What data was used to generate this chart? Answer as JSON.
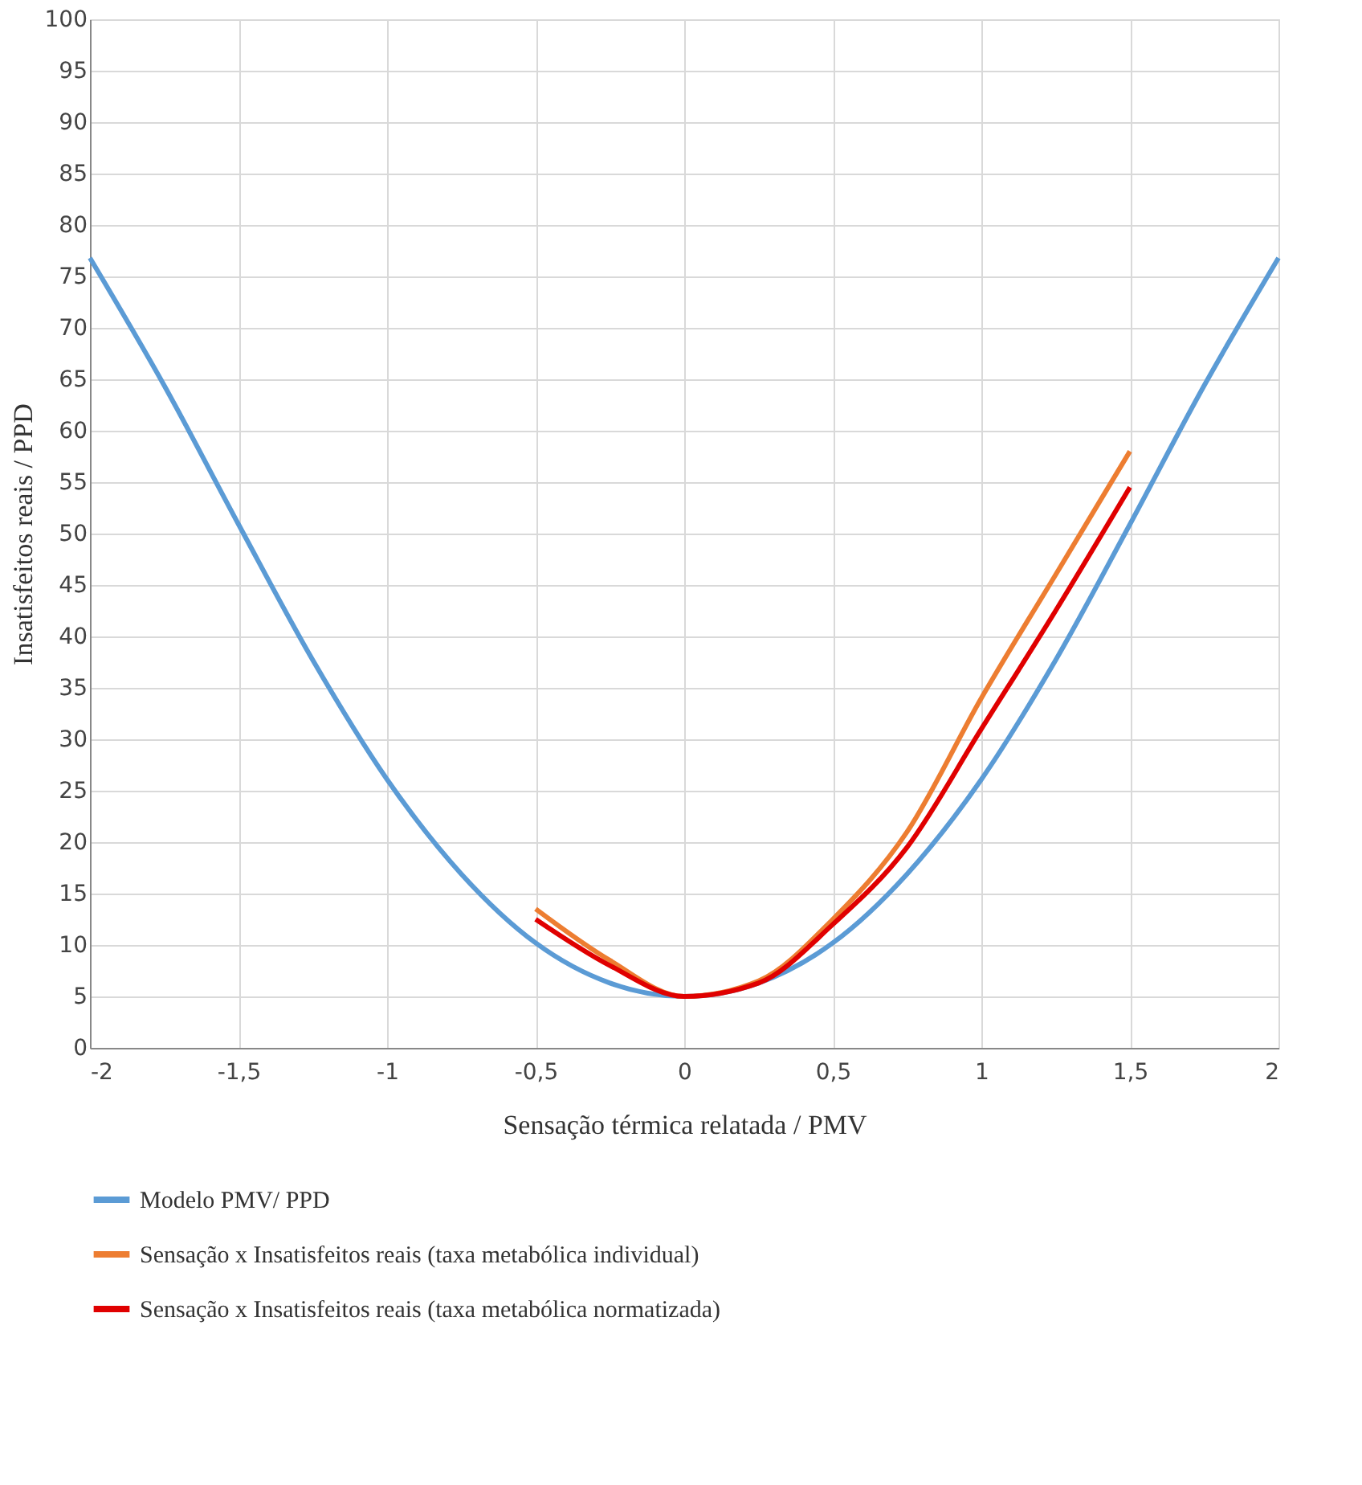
{
  "chart_data": {
    "type": "line",
    "xlabel": "Sensação térmica relatada / PMV",
    "ylabel": "Insatisfeitos reais / PPD",
    "series": [
      {
        "name": "Modelo PMV/ PPD",
        "color": "#5b9bd5",
        "x": [
          -2,
          -1.75,
          -1.5,
          -1.25,
          -1,
          -0.75,
          -0.5,
          -0.25,
          0,
          0.25,
          0.5,
          0.75,
          1,
          1.25,
          1.5,
          1.75,
          2
        ],
        "values": [
          76.8,
          64.4,
          50.9,
          37.7,
          26.1,
          16.9,
          10.2,
          6.3,
          5,
          6.3,
          10.2,
          16.9,
          26.1,
          37.7,
          50.9,
          64.4,
          76.8
        ]
      },
      {
        "name": "Sensação x Insatisfeitos reais (taxa metabólica individual)",
        "color": "#ed7d31",
        "x": [
          -0.5,
          -0.25,
          0,
          0.25,
          0.5,
          0.75,
          1,
          1.25,
          1.5
        ],
        "values": [
          13.5,
          8.5,
          5,
          6.5,
          12.5,
          21,
          34,
          46,
          58
        ]
      },
      {
        "name": "Sensação x Insatisfeitos reais (taxa metabólica normatizada)",
        "color": "#e00000",
        "x": [
          -0.5,
          -0.25,
          0,
          0.25,
          0.5,
          0.75,
          1,
          1.25,
          1.5
        ],
        "values": [
          12.5,
          8,
          5,
          6.3,
          12,
          19.5,
          31,
          42.5,
          54.5
        ]
      }
    ],
    "xlim": [
      -2,
      2
    ],
    "xticks": [
      {
        "value": -2,
        "label": "-2"
      },
      {
        "value": -1.5,
        "label": "-1,5"
      },
      {
        "value": -1,
        "label": "-1"
      },
      {
        "value": -0.5,
        "label": "-0,5"
      },
      {
        "value": 0,
        "label": "0"
      },
      {
        "value": 0.5,
        "label": "0,5"
      },
      {
        "value": 1,
        "label": "1"
      },
      {
        "value": 1.5,
        "label": "1,5"
      },
      {
        "value": 2,
        "label": "2"
      }
    ],
    "ylim": [
      0,
      100
    ],
    "yticks": [
      0,
      5,
      10,
      15,
      20,
      25,
      30,
      35,
      40,
      45,
      50,
      55,
      60,
      65,
      70,
      75,
      80,
      85,
      90,
      95,
      100
    ],
    "grid": true,
    "legend": "bottom",
    "marker": "none",
    "line_style": "solid"
  }
}
